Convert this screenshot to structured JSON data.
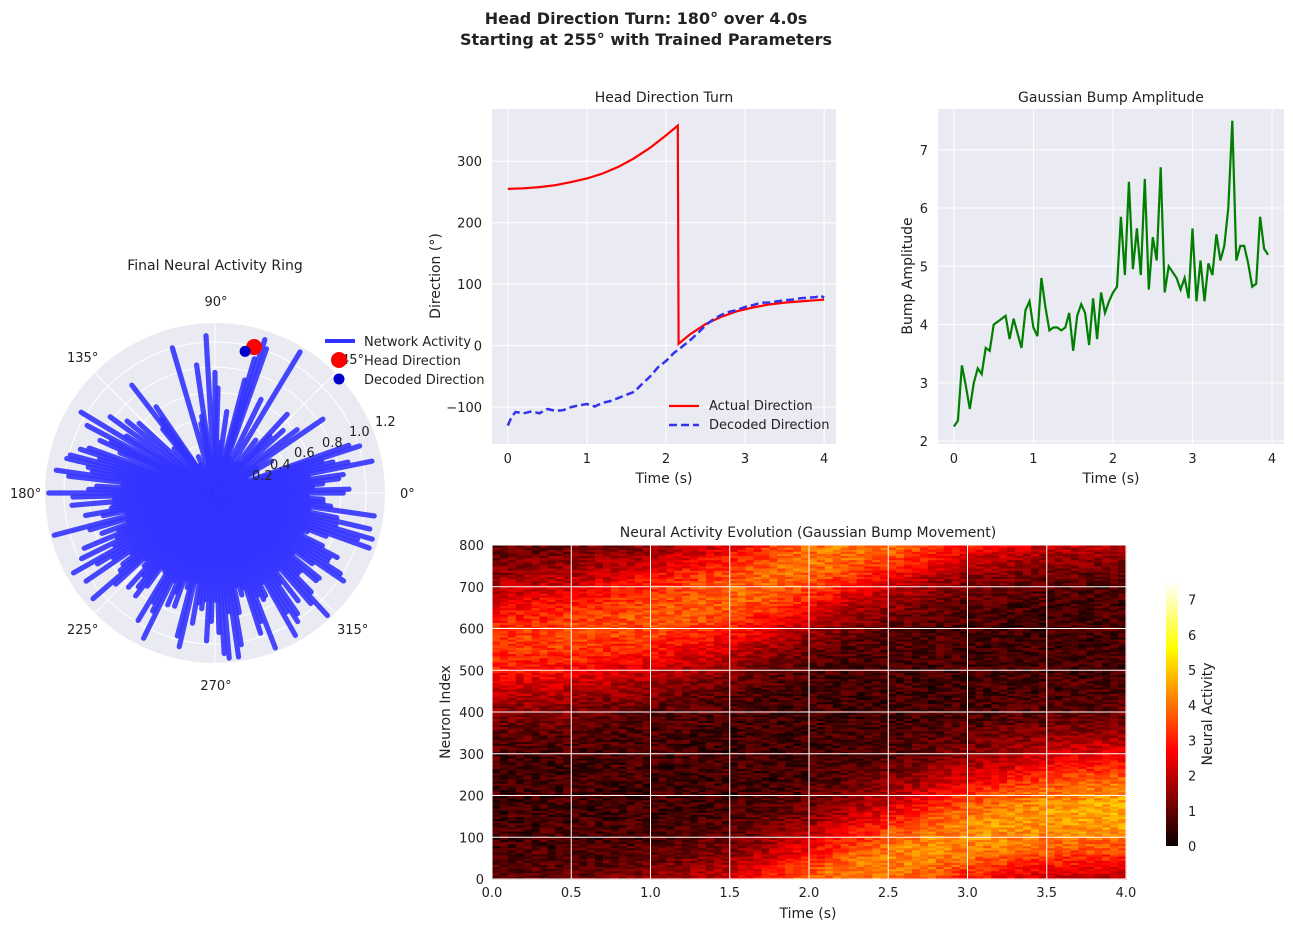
{
  "figure": {
    "title_line1": "Head Direction Turn: 180° over 4.0s",
    "title_line2": "Starting at 255° with Trained Parameters"
  },
  "colors": {
    "panel_bg": "#eaeaf2",
    "grid": "#ffffff",
    "network": "#3333ff",
    "head": "#ff0000",
    "decoded": "#0000cc",
    "actual_line": "#ff0000",
    "decoded_line": "#3333ee",
    "amplitude_line": "#007f00"
  },
  "chart_data": [
    {
      "id": "polar",
      "type": "polar",
      "title": "Final Neural Activity Ring",
      "angle_ticks": [
        "0°",
        "45°",
        "90°",
        "135°",
        "180°",
        "225°",
        "270°",
        "315°"
      ],
      "radial_ticks": [
        "0.2",
        "0.4",
        "0.6",
        "0.8",
        "1.0",
        "1.2"
      ],
      "rlim": [
        0,
        1.35
      ],
      "legend": [
        "Network Activity",
        "Head Direction",
        "Decoded Direction"
      ],
      "legend_position": "upper right",
      "head_direction": {
        "theta_deg": 75,
        "r": 1.2
      },
      "decoded_direction": {
        "theta_deg": 78,
        "r": 1.15
      }
    },
    {
      "id": "turn",
      "type": "line",
      "title": "Head Direction Turn",
      "xlabel": "Time (s)",
      "ylabel": "Direction (°)",
      "xlim": [
        -0.2,
        4.15
      ],
      "ylim": [
        -160,
        385
      ],
      "xticks": [
        0,
        1,
        2,
        3,
        4
      ],
      "yticks": [
        -100,
        0,
        100,
        200,
        300
      ],
      "legend_position": "lower right",
      "series": [
        {
          "name": "Actual Direction",
          "x": [
            0,
            0.2,
            0.4,
            0.6,
            0.8,
            1.0,
            1.2,
            1.4,
            1.6,
            1.8,
            2.0,
            2.15,
            2.16,
            2.3,
            2.5,
            2.7,
            2.9,
            3.1,
            3.3,
            3.5,
            3.7,
            3.9,
            4.0
          ],
          "y": [
            255,
            256,
            258,
            261,
            266,
            272,
            280,
            291,
            305,
            322,
            342,
            358,
            3,
            18,
            35,
            47,
            56,
            62,
            67,
            70,
            72,
            74,
            75
          ]
        },
        {
          "name": "Decoded Direction",
          "x": [
            0,
            0.05,
            0.1,
            0.2,
            0.3,
            0.4,
            0.5,
            0.6,
            0.7,
            0.8,
            0.9,
            1.0,
            1.1,
            1.2,
            1.3,
            1.4,
            1.5,
            1.6,
            1.7,
            1.8,
            1.9,
            2.0,
            2.1,
            2.2,
            2.3,
            2.4,
            2.5,
            2.6,
            2.7,
            2.8,
            2.9,
            3.0,
            3.1,
            3.2,
            3.3,
            3.4,
            3.5,
            3.6,
            3.7,
            3.8,
            3.9,
            3.95,
            4.0
          ],
          "y": [
            -130,
            -115,
            -108,
            -110,
            -107,
            -110,
            -103,
            -106,
            -105,
            -100,
            -97,
            -95,
            -99,
            -93,
            -90,
            -85,
            -80,
            -75,
            -62,
            -50,
            -35,
            -25,
            -12,
            -2,
            8,
            20,
            33,
            43,
            50,
            55,
            58,
            63,
            66,
            70,
            70,
            72,
            74,
            75,
            77,
            78,
            79,
            82,
            78
          ]
        }
      ]
    },
    {
      "id": "amplitude",
      "type": "line",
      "title": "Gaussian Bump Amplitude",
      "xlabel": "Time (s)",
      "ylabel": "Bump Amplitude",
      "xlim": [
        -0.2,
        4.15
      ],
      "ylim": [
        1.95,
        7.7
      ],
      "xticks": [
        0,
        1,
        2,
        3,
        4
      ],
      "yticks": [
        2,
        3,
        4,
        5,
        6,
        7
      ],
      "series": [
        {
          "name": "Bump Amplitude",
          "x": [
            0,
            0.05,
            0.1,
            0.15,
            0.2,
            0.25,
            0.3,
            0.35,
            0.4,
            0.45,
            0.5,
            0.55,
            0.6,
            0.65,
            0.7,
            0.75,
            0.8,
            0.85,
            0.9,
            0.95,
            1.0,
            1.05,
            1.1,
            1.15,
            1.2,
            1.25,
            1.3,
            1.35,
            1.4,
            1.45,
            1.5,
            1.55,
            1.6,
            1.65,
            1.7,
            1.75,
            1.8,
            1.85,
            1.9,
            1.95,
            2.0,
            2.05,
            2.1,
            2.15,
            2.2,
            2.25,
            2.3,
            2.35,
            2.4,
            2.45,
            2.5,
            2.55,
            2.6,
            2.65,
            2.7,
            2.75,
            2.8,
            2.85,
            2.9,
            2.95,
            3.0,
            3.05,
            3.1,
            3.15,
            3.2,
            3.25,
            3.3,
            3.35,
            3.4,
            3.45,
            3.5,
            3.55,
            3.6,
            3.65,
            3.7,
            3.75,
            3.8,
            3.85,
            3.9,
            3.95
          ],
          "y": [
            2.25,
            2.35,
            3.3,
            2.95,
            2.55,
            3.0,
            3.25,
            3.15,
            3.6,
            3.55,
            4.0,
            4.05,
            4.1,
            4.15,
            3.75,
            4.1,
            3.85,
            3.6,
            4.25,
            4.4,
            3.95,
            3.8,
            4.8,
            4.3,
            3.9,
            3.95,
            3.95,
            3.9,
            3.95,
            4.2,
            3.55,
            4.15,
            4.35,
            4.2,
            3.65,
            4.45,
            3.75,
            4.55,
            4.2,
            4.4,
            4.55,
            4.65,
            5.85,
            4.85,
            6.45,
            4.95,
            5.65,
            4.85,
            6.5,
            4.6,
            5.5,
            5.1,
            6.7,
            4.55,
            5.0,
            4.9,
            4.8,
            4.6,
            4.8,
            4.45,
            5.65,
            4.4,
            5.1,
            4.4,
            5.05,
            4.85,
            5.55,
            5.1,
            5.35,
            6.0,
            7.5,
            5.1,
            5.35,
            5.35,
            5.05,
            4.65,
            4.7,
            5.85,
            5.3,
            5.2
          ]
        }
      ]
    },
    {
      "id": "heatmap",
      "type": "heatmap",
      "title": "Neural Activity Evolution (Gaussian Bump Movement)",
      "xlabel": "Time (s)",
      "ylabel": "Neuron Index",
      "xlim": [
        0,
        4.0
      ],
      "ylim": [
        0,
        800
      ],
      "xticks": [
        "0.0",
        "0.5",
        "1.0",
        "1.5",
        "2.0",
        "2.5",
        "3.0",
        "3.5",
        "4.0"
      ],
      "yticks": [
        "0",
        "100",
        "200",
        "300",
        "400",
        "500",
        "600",
        "700",
        "800"
      ],
      "colormap": "hot",
      "colorbar_label": "Neural Activity",
      "colorbar_ticks": [
        "0",
        "1",
        "2",
        "3",
        "4",
        "5",
        "6",
        "7"
      ],
      "clim": [
        0,
        7.5
      ],
      "bump_center_path": {
        "t": [
          0,
          0.5,
          1.0,
          1.5,
          2.0,
          2.15,
          2.5,
          3.0,
          3.5,
          4.0
        ],
        "neuron": [
          567,
          590,
          630,
          680,
          760,
          790,
          40,
          110,
          150,
          165
        ]
      }
    }
  ]
}
